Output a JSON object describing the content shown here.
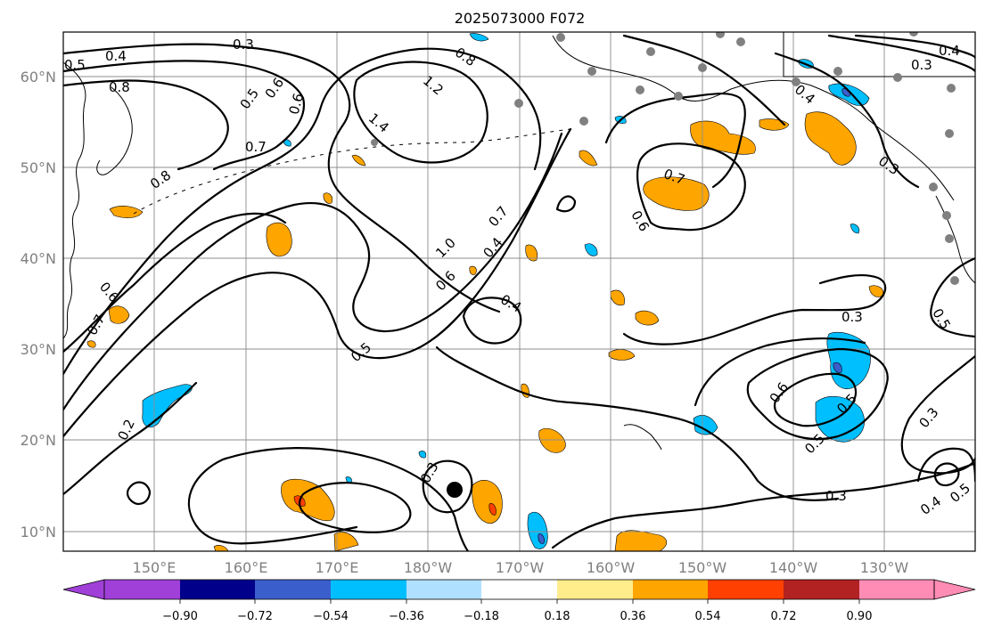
{
  "title": "2025073000 F072",
  "latitude_labels": [
    "60°N",
    "50°N",
    "40°N",
    "30°N",
    "20°N",
    "10°N"
  ],
  "longitude_labels": [
    "150°E",
    "160°E",
    "170°E",
    "180°W",
    "170°W",
    "160°W",
    "150°W",
    "140°W",
    "130°W"
  ],
  "colorbar": {
    "tick_labels": [
      "−0.90",
      "−0.72",
      "−0.54",
      "−0.36",
      "−0.18",
      "0.18",
      "0.36",
      "0.54",
      "0.72",
      "0.90"
    ],
    "colors": [
      "#a040d8",
      "#00008b",
      "#3a5fcd",
      "#00bfff",
      "#b0e0ff",
      "#ffffff",
      "#ffec8b",
      "#ffa500",
      "#ff4000",
      "#b22222",
      "#ff8cb4"
    ]
  },
  "contour_labels": [
    "0.3",
    "0.4",
    "0.5",
    "0.8",
    "0.5",
    "0.6",
    "0.7",
    "0.8",
    "0.6",
    "0.7",
    "0.6",
    "0.8",
    "1.2",
    "1.4",
    "1.0",
    "0.6",
    "0.5",
    "0.7",
    "0.4",
    "0.4",
    "0.7",
    "0.6",
    "0.4",
    "0.3",
    "0.4",
    "0.3",
    "0.5",
    "0.3",
    "0.6",
    "0.5",
    "0.5",
    "0.3",
    "0.4",
    "0.5",
    "0.3",
    "0.3",
    "0.2"
  ],
  "markers": {
    "storm_center": "storm-center-dot",
    "station_color": "#808080"
  }
}
